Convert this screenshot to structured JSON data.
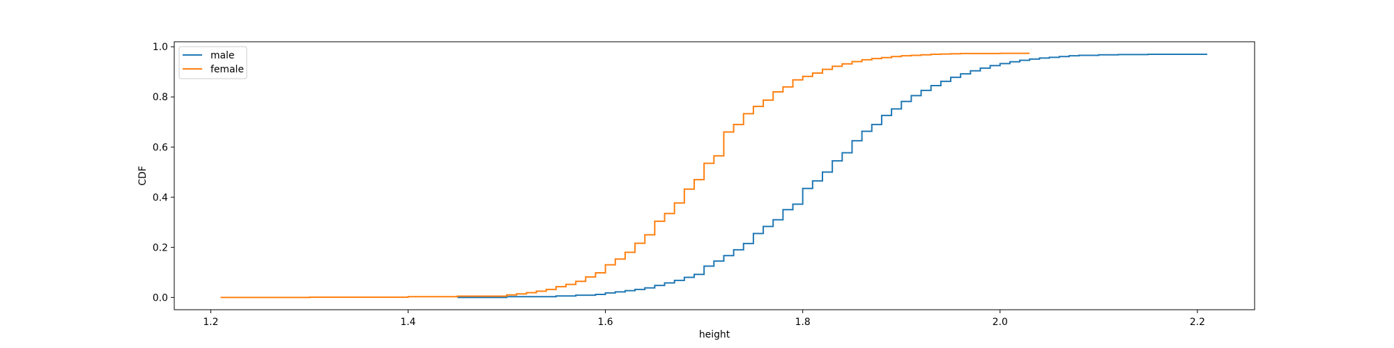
{
  "chart_data": {
    "type": "line",
    "step": true,
    "title": "",
    "xlabel": "height",
    "ylabel": "CDF",
    "xlim": [
      1.163,
      2.258
    ],
    "ylim": [
      -0.049,
      1.02
    ],
    "xticks": [
      1.2,
      1.4,
      1.6,
      1.8,
      2.0,
      2.2
    ],
    "xtick_labels": [
      "1.2",
      "1.4",
      "1.6",
      "1.8",
      "2.0",
      "2.2"
    ],
    "yticks": [
      0.0,
      0.2,
      0.4,
      0.6,
      0.8,
      1.0
    ],
    "ytick_labels": [
      "0.0",
      "0.2",
      "0.4",
      "0.6",
      "0.8",
      "1.0"
    ],
    "grid": false,
    "legend_position": "top-left",
    "series": [
      {
        "name": "male",
        "color": "#1f77b4",
        "x": [
          1.45,
          1.5,
          1.55,
          1.57,
          1.59,
          1.6,
          1.61,
          1.62,
          1.63,
          1.64,
          1.65,
          1.66,
          1.67,
          1.68,
          1.69,
          1.7,
          1.71,
          1.72,
          1.73,
          1.74,
          1.75,
          1.76,
          1.77,
          1.78,
          1.79,
          1.8,
          1.81,
          1.82,
          1.83,
          1.84,
          1.85,
          1.86,
          1.87,
          1.88,
          1.89,
          1.9,
          1.91,
          1.92,
          1.93,
          1.94,
          1.95,
          1.96,
          1.97,
          1.98,
          1.99,
          2.0,
          2.01,
          2.02,
          2.03,
          2.04,
          2.05,
          2.06,
          2.07,
          2.08,
          2.1,
          2.12,
          2.15,
          2.21
        ],
        "y": [
          0.0,
          0.003,
          0.006,
          0.009,
          0.012,
          0.018,
          0.022,
          0.027,
          0.032,
          0.038,
          0.048,
          0.058,
          0.068,
          0.08,
          0.092,
          0.125,
          0.145,
          0.167,
          0.19,
          0.215,
          0.255,
          0.283,
          0.31,
          0.35,
          0.372,
          0.435,
          0.465,
          0.5,
          0.545,
          0.577,
          0.625,
          0.663,
          0.69,
          0.726,
          0.752,
          0.782,
          0.805,
          0.826,
          0.845,
          0.862,
          0.878,
          0.892,
          0.904,
          0.915,
          0.925,
          0.933,
          0.94,
          0.946,
          0.951,
          0.955,
          0.958,
          0.961,
          0.964,
          0.966,
          0.968,
          0.969,
          0.97,
          0.97
        ]
      },
      {
        "name": "female",
        "color": "#ff7f0e",
        "x": [
          1.21,
          1.3,
          1.4,
          1.45,
          1.5,
          1.51,
          1.52,
          1.53,
          1.54,
          1.55,
          1.56,
          1.57,
          1.58,
          1.59,
          1.6,
          1.61,
          1.62,
          1.63,
          1.64,
          1.65,
          1.66,
          1.67,
          1.68,
          1.69,
          1.7,
          1.71,
          1.72,
          1.73,
          1.74,
          1.75,
          1.76,
          1.77,
          1.78,
          1.79,
          1.8,
          1.81,
          1.82,
          1.83,
          1.84,
          1.85,
          1.86,
          1.87,
          1.88,
          1.89,
          1.9,
          1.91,
          1.92,
          1.93,
          1.94,
          1.95,
          1.96,
          1.98,
          2.0,
          2.03
        ],
        "y": [
          0.0,
          0.001,
          0.003,
          0.005,
          0.01,
          0.014,
          0.019,
          0.025,
          0.032,
          0.043,
          0.052,
          0.064,
          0.082,
          0.098,
          0.13,
          0.153,
          0.18,
          0.216,
          0.25,
          0.304,
          0.335,
          0.377,
          0.432,
          0.47,
          0.535,
          0.565,
          0.66,
          0.69,
          0.733,
          0.762,
          0.787,
          0.82,
          0.84,
          0.868,
          0.882,
          0.895,
          0.91,
          0.922,
          0.932,
          0.941,
          0.948,
          0.953,
          0.957,
          0.961,
          0.964,
          0.966,
          0.968,
          0.97,
          0.971,
          0.972,
          0.973,
          0.973,
          0.974,
          0.974
        ]
      }
    ]
  }
}
